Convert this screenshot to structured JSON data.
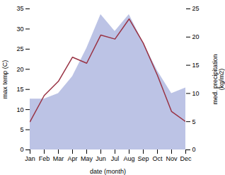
{
  "chart_data": {
    "type": "line",
    "xlabel": "date (month)",
    "ylabel": "max temp (C)",
    "y2label": "med. precipitation\n(kg/m2)",
    "categories": [
      "Jan",
      "Feb",
      "Mar",
      "Apr",
      "May",
      "Jun",
      "Jul",
      "Aug",
      "Sep",
      "Oct",
      "Nov",
      "Dec"
    ],
    "series": [
      {
        "type": "area",
        "axis": "y2",
        "color": "#b0b8e0",
        "values": [
          9,
          9,
          10,
          13,
          18,
          24,
          21,
          24,
          19,
          14,
          10,
          11
        ]
      },
      {
        "type": "line",
        "color": "#993344",
        "values": [
          7.0,
          13.5,
          17.0,
          23.0,
          21.5,
          28.5,
          27.5,
          32.5,
          26.5,
          18.5,
          9.5,
          7.0
        ]
      }
    ],
    "ylim": [
      0,
      35
    ],
    "yticks": [
      0,
      5,
      10,
      15,
      20,
      25,
      30,
      35
    ],
    "y2lim": [
      0,
      25
    ],
    "y2ticks": [
      0,
      5,
      10,
      15,
      20,
      25
    ],
    "grid": false
  }
}
